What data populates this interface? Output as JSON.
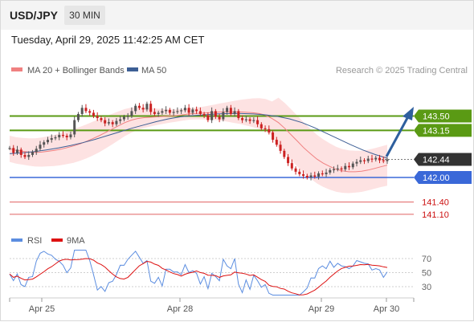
{
  "header": {
    "symbol": "USD/JPY",
    "timeframe": "30 MIN",
    "timestamp": "Tuesday, April 29, 2025 11:42:25 AM CET"
  },
  "legend": {
    "ma20": "MA 20 + Bollinger Bands",
    "ma50": "MA 50",
    "source": "Research © 2025 Trading Central"
  },
  "rsi_legend": {
    "rsi": "RSI",
    "ma9": "9MA"
  },
  "colors": {
    "green": "#5a9a14",
    "blue": "#3a68d8",
    "red": "#e06060",
    "ma50": "#3d5f95",
    "ma20": "#f08080",
    "band": "#fde2e2",
    "candle_up": "#555555",
    "candle_down": "#cc2222",
    "arrow": "#2e5f9e"
  },
  "chart_data": [
    {
      "type": "candlestick",
      "x_ticks": [
        "Apr 25",
        "Apr 28",
        "Apr 29",
        "Apr 30"
      ],
      "levels": [
        {
          "value": 143.5,
          "label": "143.50",
          "kind": "resistance"
        },
        {
          "value": 143.15,
          "label": "143.15",
          "kind": "resistance"
        },
        {
          "value": 142.44,
          "label": "142.44",
          "kind": "last"
        },
        {
          "value": 142.0,
          "label": "142.00",
          "kind": "pivot"
        },
        {
          "value": 141.4,
          "label": "141.40",
          "kind": "support"
        },
        {
          "value": 141.1,
          "label": "141.10",
          "kind": "support"
        }
      ],
      "close_series": [
        142.72,
        142.6,
        142.68,
        142.55,
        142.5,
        142.55,
        142.62,
        142.7,
        142.8,
        142.86,
        142.92,
        142.96,
        142.98,
        143.04,
        143.02,
        142.98,
        143.05,
        143.4,
        143.55,
        143.7,
        143.62,
        143.58,
        143.5,
        143.45,
        143.4,
        143.32,
        143.35,
        143.3,
        143.38,
        143.42,
        143.48,
        143.5,
        143.62,
        143.75,
        143.7,
        143.66,
        143.8,
        143.6,
        143.55,
        143.58,
        143.62,
        143.65,
        143.58,
        143.6,
        143.62,
        143.64,
        143.7,
        143.58,
        143.66,
        143.62,
        143.55,
        143.52,
        143.4,
        143.62,
        143.48,
        143.42,
        143.6,
        143.7,
        143.55,
        143.62,
        143.45,
        143.4,
        143.42,
        143.38,
        143.4,
        143.3,
        143.2,
        143.18,
        143.1,
        142.92,
        142.8,
        142.65,
        142.5,
        142.35,
        142.22,
        142.14,
        142.08,
        142.04,
        142.0,
        142.05,
        142.02,
        142.1,
        142.08,
        142.12,
        142.18,
        142.2,
        142.22,
        142.2,
        142.28,
        142.25,
        142.34,
        142.38,
        142.42,
        142.4,
        142.46,
        142.44,
        142.48,
        142.42,
        142.4,
        142.44
      ],
      "ma20": [
        142.7,
        142.66,
        142.64,
        142.62,
        142.61,
        142.62,
        142.64,
        142.66,
        142.69,
        142.73,
        142.77,
        142.82,
        142.88,
        142.95,
        143.02,
        143.1,
        143.18,
        143.26,
        143.34,
        143.4,
        143.44,
        143.46,
        143.47,
        143.48,
        143.49,
        143.5,
        143.51,
        143.53,
        143.55,
        143.56,
        143.57,
        143.58,
        143.59,
        143.6,
        143.6,
        143.6,
        143.6,
        143.59,
        143.58,
        143.56,
        143.52,
        143.44,
        143.34,
        143.2,
        143.04,
        142.88,
        142.72,
        142.58,
        142.45,
        142.35,
        142.27,
        142.2,
        142.16,
        142.14,
        142.14,
        142.15,
        142.18,
        142.22,
        142.26,
        142.3
      ],
      "ma50": [
        142.58,
        142.6,
        142.63,
        142.67,
        142.72,
        142.78,
        142.85,
        142.93,
        143.02,
        143.11,
        143.2,
        143.28,
        143.36,
        143.43,
        143.48,
        143.51,
        143.53,
        143.55,
        143.56,
        143.56,
        143.55,
        143.53,
        143.49,
        143.43,
        143.34,
        143.22,
        143.08,
        142.94,
        142.8,
        142.67,
        142.56,
        142.47
      ],
      "y_axis_ticks": [],
      "rsi": {
        "ticks": [
          70,
          50,
          30
        ],
        "ylim": [
          15,
          85
        ]
      }
    }
  ]
}
